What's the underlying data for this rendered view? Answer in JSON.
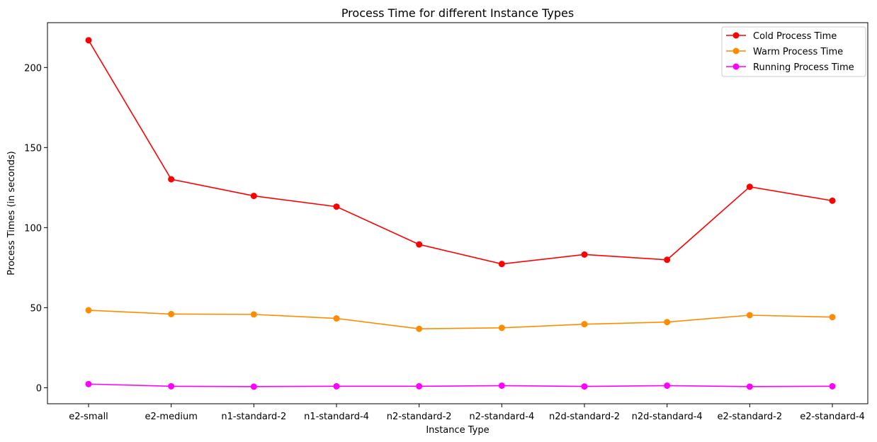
{
  "chart_data": {
    "type": "line",
    "title": "Process Time for different Instance Types",
    "xlabel": "Instance Type",
    "ylabel": "Process Times (in seconds)",
    "categories": [
      "e2-small",
      "e2-medium",
      "n1-standard-2",
      "n1-standard-4",
      "n2-standard-2",
      "n2-standard-4",
      "n2d-standard-2",
      "n2d-standard-4",
      "e2-standard-2",
      "e2-standard-4"
    ],
    "ylim": [
      -10,
      228
    ],
    "yticks": [
      0,
      50,
      100,
      150,
      200
    ],
    "grid": false,
    "legend_position": "top-right",
    "series": [
      {
        "name": "Cold Process Time",
        "color": "#ff0000",
        "values": [
          217,
          130.2,
          119.8,
          113.1,
          89.5,
          77.3,
          83.2,
          79.9,
          125.5,
          116.8
        ]
      },
      {
        "name": "Warm Process Time",
        "color": "#ff8c00",
        "values": [
          48.4,
          46.0,
          45.8,
          43.3,
          36.8,
          37.4,
          39.7,
          41.0,
          45.3,
          44.1
        ]
      },
      {
        "name": "Running Process Time",
        "color": "#ff00ff",
        "values": [
          2.3,
          0.9,
          0.7,
          0.9,
          0.9,
          1.3,
          0.8,
          1.3,
          0.7,
          0.9
        ]
      }
    ]
  }
}
